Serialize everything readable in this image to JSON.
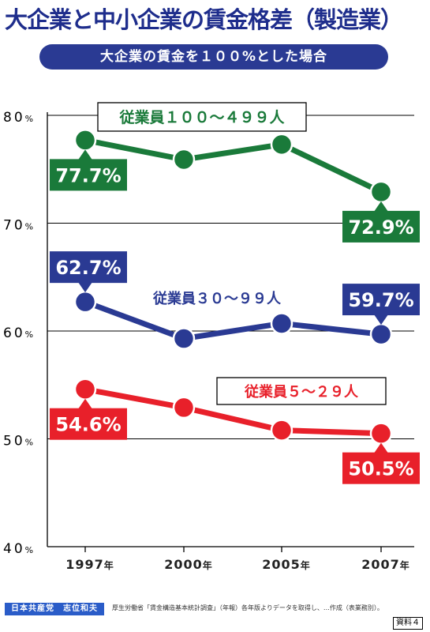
{
  "title": "大企業と中小企業の賃金格差（製造業）",
  "subtitle": "大企業の賃金を１００%とした場合",
  "footer": {
    "org": "日本共産党　志位和夫",
    "note": "厚生労働省「賃金構造基本統計調査」（年報）各年版よりデータを取得し、…作成（表業務別）。",
    "doc_ref": "資料４"
  },
  "chart_data": {
    "type": "line",
    "categories": [
      "1997年",
      "2000年",
      "2005年",
      "2007年"
    ],
    "ylim": [
      40,
      80
    ],
    "yticks": [
      {
        "value": 80,
        "num": "80",
        "unit": "%"
      },
      {
        "value": 70,
        "num": "70",
        "unit": "%"
      },
      {
        "value": 60,
        "num": "60",
        "unit": "%"
      },
      {
        "value": 50,
        "num": "50",
        "unit": "%"
      },
      {
        "value": 40,
        "num": "40",
        "unit": "%"
      }
    ],
    "grid": true,
    "series": [
      {
        "name": "従業員１００～４９９人",
        "color": "#1a7a3a",
        "values": [
          77.7,
          75.9,
          77.3,
          72.9
        ],
        "labels": [
          {
            "index": 0,
            "text": "77.7%",
            "side": "below"
          },
          {
            "index": 3,
            "text": "72.9%",
            "side": "below"
          }
        ]
      },
      {
        "name": "従業員３０～９９人",
        "color": "#2a3a93",
        "values": [
          62.7,
          59.3,
          60.7,
          59.7
        ],
        "labels": [
          {
            "index": 0,
            "text": "62.7%",
            "side": "above"
          },
          {
            "index": 3,
            "text": "59.7%",
            "side": "above"
          }
        ]
      },
      {
        "name": "従業員５～２９人",
        "color": "#e8202a",
        "values": [
          54.6,
          52.9,
          50.8,
          50.5
        ],
        "labels": [
          {
            "index": 0,
            "text": "54.6%",
            "side": "below"
          },
          {
            "index": 3,
            "text": "50.5%",
            "side": "below"
          }
        ]
      }
    ]
  }
}
